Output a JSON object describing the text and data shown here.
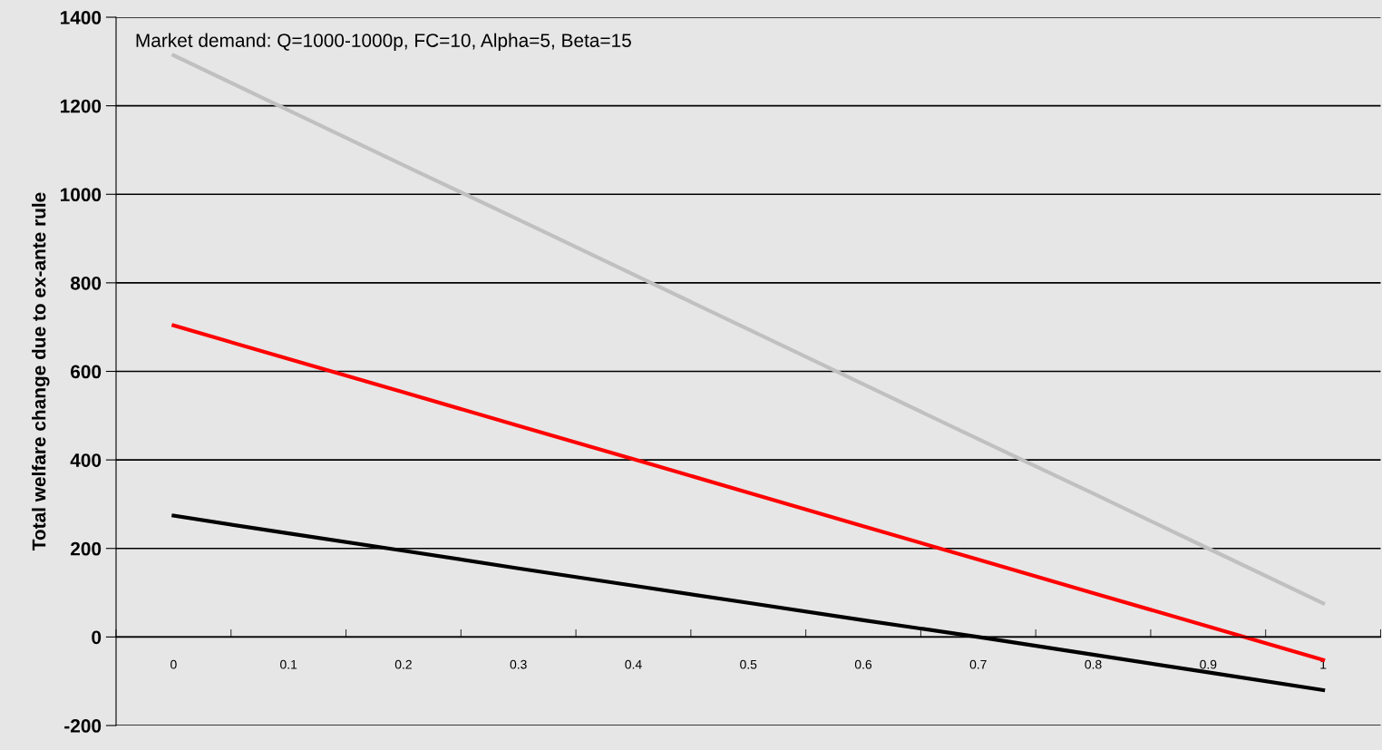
{
  "chart_data": {
    "type": "line",
    "ylabel": "Total welfare change due to ex-ante rule",
    "annotations": [
      "Market demand: Q=1000-1000p, FC=10, Alpha=5, Beta=15"
    ],
    "categories": [
      "0",
      "0.1",
      "0.2",
      "0.3",
      "0.4",
      "0.5",
      "0.6",
      "0.7",
      "0.8",
      "0.9",
      "1"
    ],
    "series": [
      {
        "color": "#c0c0c0",
        "values": [
          1314,
          1190,
          1066,
          943,
          819,
          695,
          571,
          447,
          324,
          200,
          76
        ]
      },
      {
        "color": "#ff0000",
        "values": [
          704,
          628,
          553,
          477,
          402,
          326,
          250,
          175,
          99,
          24,
          -52
        ]
      },
      {
        "color": "#000000",
        "values": [
          274,
          234,
          195,
          155,
          116,
          77,
          38,
          0,
          -40,
          -80,
          -120
        ]
      }
    ],
    "ylim": [
      -200,
      1400
    ],
    "yticks": [
      -200,
      0,
      200,
      400,
      600,
      800,
      1000,
      1200,
      1400
    ],
    "grid": "y",
    "legend": false,
    "marker": "none",
    "line_style": "solid"
  }
}
